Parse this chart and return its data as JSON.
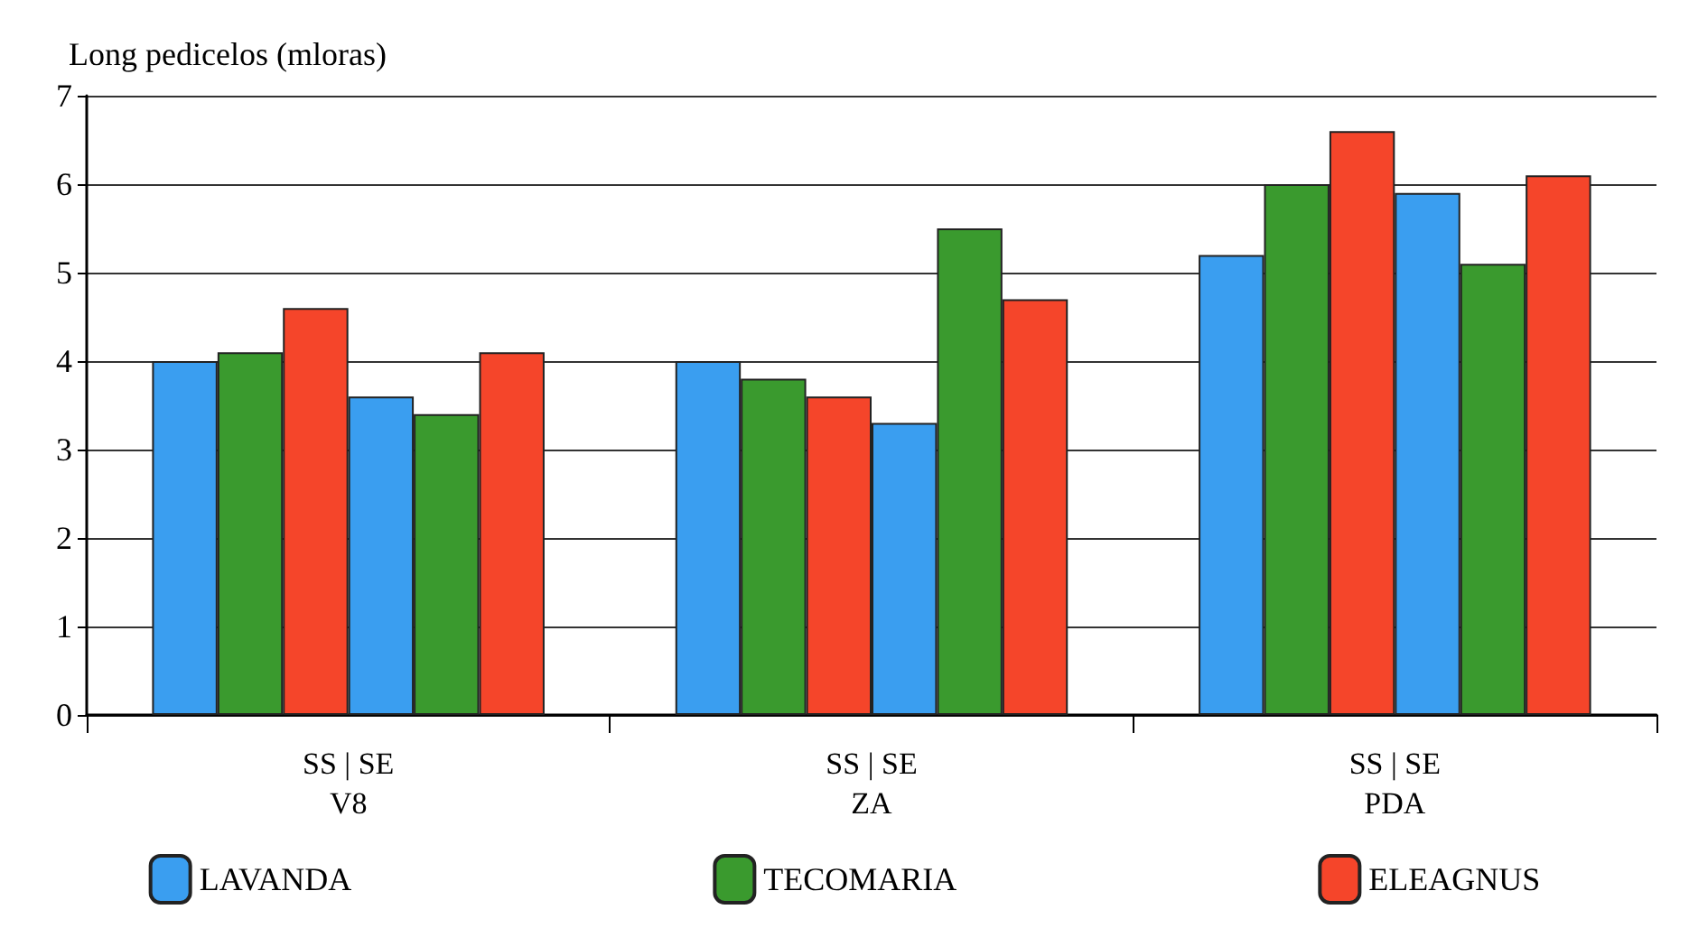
{
  "chart_data": {
    "type": "bar",
    "ylabel": "Long pedicelos (mloras)",
    "categories": [
      "SS | SE\nV8",
      "SS | SE\nZA",
      "SS | SE\nPDA"
    ],
    "series": [
      {
        "name": "LAVANDA",
        "color": "#3a9ef0",
        "values": [
          4.0,
          4.0,
          5.2
        ]
      },
      {
        "name": "TECOMARIA",
        "color": "#3a9a2e",
        "values": [
          4.1,
          3.8,
          6.0
        ]
      },
      {
        "name": "ELEAGNUS",
        "color": "#f5452a",
        "values": [
          4.6,
          3.6,
          6.6
        ]
      },
      {
        "color": "#3a9ef0",
        "values": [
          3.6,
          3.3,
          5.9
        ]
      },
      {
        "color": "#3a9a2e",
        "values": [
          3.4,
          5.5,
          5.1
        ]
      },
      {
        "color": "#f5452a",
        "values": [
          4.1,
          4.7,
          6.1
        ]
      }
    ],
    "ylim": [
      0,
      7
    ],
    "yticks": [
      0,
      1,
      2,
      3,
      4,
      5,
      6,
      7
    ],
    "grid": "y",
    "legend": "bottom"
  }
}
